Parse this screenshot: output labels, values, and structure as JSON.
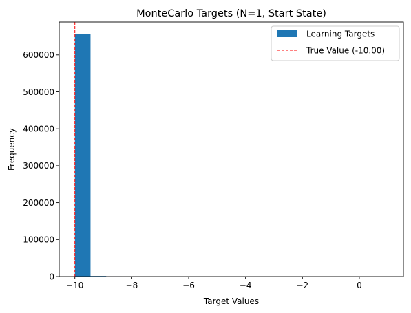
{
  "chart_data": {
    "type": "bar",
    "title": "MonteCarlo Targets (N=1, Start State)",
    "xlabel": "Target Values",
    "ylabel": "Frequency",
    "xlim": [
      -10.55,
      1.55
    ],
    "ylim": [
      0,
      689000
    ],
    "xticks": [
      -10,
      -8,
      -6,
      -4,
      -2,
      0
    ],
    "xtick_labels": [
      "−10",
      "−8",
      "−6",
      "−4",
      "−2",
      "0"
    ],
    "yticks": [
      0,
      100000,
      200000,
      300000,
      400000,
      500000,
      600000
    ],
    "ytick_labels": [
      "0",
      "100000",
      "200000",
      "300000",
      "400000",
      "500000",
      "600000"
    ],
    "bin_edges": [
      -10,
      -9.45,
      -8.9,
      -8.35,
      -7.8,
      -7.25,
      -6.7,
      -6.15,
      -5.6,
      -5.05,
      -4.5,
      -3.95,
      -3.4,
      -2.85,
      -2.3,
      -1.75,
      -1.2,
      -0.65,
      -0.1,
      0.45,
      1.0
    ],
    "counts": [
      656000,
      1500,
      200,
      0,
      0,
      0,
      0,
      0,
      0,
      0,
      0,
      0,
      0,
      0,
      0,
      0,
      0,
      0,
      0,
      0
    ],
    "bar_color": "#1f77b4",
    "reference_line": {
      "x": -10.0,
      "color": "#ff0000",
      "style": "dashed"
    },
    "legend": {
      "placement": "top-right",
      "entries": [
        {
          "label": "Learning Targets",
          "type": "patch",
          "color": "#1f77b4"
        },
        {
          "label": "True Value (-10.00)",
          "type": "dashed-line",
          "color": "#ff0000"
        }
      ]
    },
    "grid": false
  }
}
